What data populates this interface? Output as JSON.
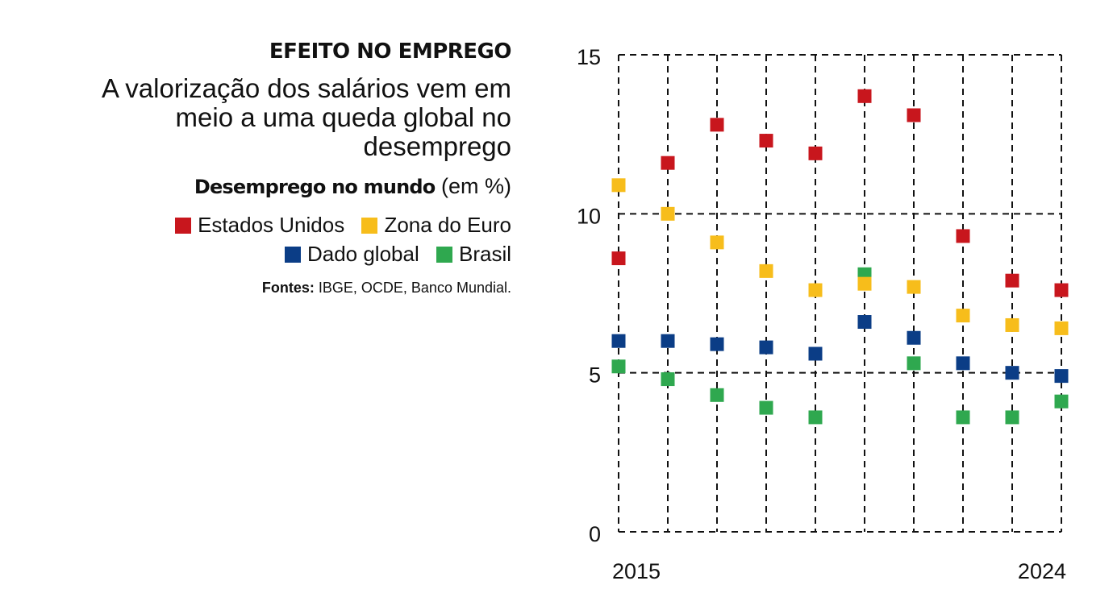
{
  "header": {
    "kicker": "EFEITO NO EMPREGO",
    "headline_lines": [
      "A valorização dos salários vem em",
      "meio a uma queda global no",
      "desemprego"
    ],
    "subtitle_bold": "Desemprego no mundo",
    "subtitle_unit": " (em %)"
  },
  "legend": {
    "row1": [
      {
        "label": "Estados Unidos",
        "color": "#c8161d"
      },
      {
        "label": "Zona do Euro",
        "color": "#f7bd1b"
      }
    ],
    "row2": [
      {
        "label": "Dado global",
        "color": "#0b3d86"
      },
      {
        "label": "Brasil",
        "color": "#2fa84f"
      }
    ]
  },
  "sources": {
    "label": "Fontes:",
    "text": " IBGE, OCDE, Banco Mundial."
  },
  "chart_data": {
    "type": "scatter",
    "title": "Desemprego no mundo (em %)",
    "xlabel": "",
    "ylabel": "",
    "x": [
      2015,
      2016,
      2017,
      2018,
      2019,
      2020,
      2021,
      2022,
      2023,
      2024
    ],
    "x_tick_labels": [
      "2015",
      "2024"
    ],
    "ylim": [
      0,
      15
    ],
    "y_ticks": [
      0,
      5,
      10,
      15
    ],
    "y_tick_labels": [
      "0",
      "5",
      "10",
      "15"
    ],
    "grid": true,
    "series": [
      {
        "name": "Estados Unidos",
        "color": "#c8161d",
        "values": [
          8.6,
          11.6,
          12.8,
          12.3,
          11.9,
          13.7,
          13.1,
          9.3,
          7.9,
          7.6
        ]
      },
      {
        "name": "Brasil",
        "color": "#2fa84f",
        "values": [
          5.2,
          4.8,
          4.3,
          3.9,
          3.6,
          8.1,
          5.3,
          3.6,
          3.6,
          4.1
        ]
      },
      {
        "name": "Zona do Euro",
        "color": "#f7bd1b",
        "values": [
          10.9,
          10.0,
          9.1,
          8.2,
          7.6,
          7.8,
          7.7,
          6.8,
          6.5,
          6.4
        ]
      },
      {
        "name": "Dado global",
        "color": "#0b3d86",
        "values": [
          6.0,
          6.0,
          5.9,
          5.8,
          5.6,
          6.6,
          6.1,
          5.3,
          5.0,
          4.9
        ]
      }
    ]
  }
}
